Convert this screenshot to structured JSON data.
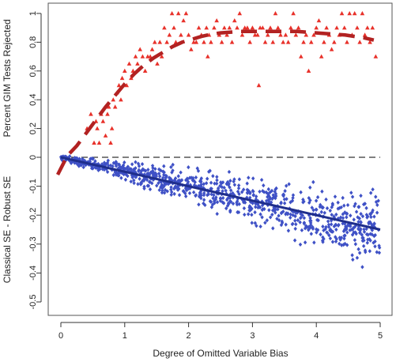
{
  "chart_data": {
    "type": "scatter",
    "xlabel": "Degree of Omitted Variable Bias",
    "ylabel_top": "Percent GIM Tests Rejected",
    "ylabel_bottom": "Classical SE - Robust SE",
    "xlim": [
      -0.35,
      5.2
    ],
    "ylim": [
      -0.52,
      1.05
    ],
    "xticks": [
      0,
      1,
      2,
      3,
      4,
      5
    ],
    "yticks": [
      1,
      0.8,
      0.6,
      0.4,
      0.2,
      0,
      -0.1,
      -0.2,
      -0.3,
      -0.4,
      -0.5
    ],
    "ytick_labels": [
      "1",
      "0.8",
      "0.6",
      "0.4",
      "0.2",
      "0",
      "-0.1",
      "-0.2",
      "-0.3",
      "-0.4",
      "-0.5"
    ],
    "grid": false,
    "reference_line": {
      "y": 0,
      "style": "dashed",
      "color": "#000000"
    },
    "series": [
      {
        "kind": "points",
        "marker": "triangle",
        "color": "#e8312a",
        "points": [
          [
            0.41,
            0.2
          ],
          [
            0.47,
            0.3
          ],
          [
            0.52,
            0.1
          ],
          [
            0.55,
            0.25
          ],
          [
            0.57,
            0.2
          ],
          [
            0.6,
            0.1
          ],
          [
            0.63,
            0.3
          ],
          [
            0.66,
            0.25
          ],
          [
            0.7,
            0.15
          ],
          [
            0.73,
            0.3
          ],
          [
            0.75,
            0.35
          ],
          [
            0.78,
            0.1
          ],
          [
            0.8,
            0.2
          ],
          [
            0.82,
            0.4
          ],
          [
            0.85,
            0.35
          ],
          [
            0.88,
            0.45
          ],
          [
            0.91,
            0.5
          ],
          [
            0.94,
            0.4
          ],
          [
            0.96,
            0.55
          ],
          [
            1.0,
            0.6
          ],
          [
            1.03,
            0.5
          ],
          [
            1.07,
            0.65
          ],
          [
            1.1,
            0.55
          ],
          [
            1.13,
            0.6
          ],
          [
            1.17,
            0.7
          ],
          [
            1.2,
            0.65
          ],
          [
            1.24,
            0.75
          ],
          [
            1.28,
            0.7
          ],
          [
            1.32,
            0.6
          ],
          [
            1.36,
            0.7
          ],
          [
            1.4,
            0.7
          ],
          [
            1.43,
            0.75
          ],
          [
            1.47,
            0.8
          ],
          [
            1.51,
            0.65
          ],
          [
            1.55,
            0.8
          ],
          [
            1.58,
            0.7
          ],
          [
            1.62,
            0.9
          ],
          [
            1.66,
            0.8
          ],
          [
            1.7,
            0.85
          ],
          [
            1.74,
            1.0
          ],
          [
            1.77,
            0.9
          ],
          [
            1.8,
            0.8
          ],
          [
            1.84,
            1.0
          ],
          [
            1.88,
            0.85
          ],
          [
            1.92,
            0.95
          ],
          [
            1.96,
            1.0
          ],
          [
            2.0,
            0.85
          ],
          [
            2.04,
            0.75
          ],
          [
            2.08,
            0.8
          ],
          [
            2.12,
            0.8
          ],
          [
            2.16,
            0.9
          ],
          [
            2.2,
            0.85
          ],
          [
            2.24,
            0.8
          ],
          [
            2.28,
            0.9
          ],
          [
            2.32,
            0.85
          ],
          [
            2.35,
            0.8
          ],
          [
            2.4,
            0.9
          ],
          [
            2.44,
            0.95
          ],
          [
            2.48,
            0.85
          ],
          [
            2.52,
            0.8
          ],
          [
            2.56,
            0.9
          ],
          [
            2.6,
            0.85
          ],
          [
            2.64,
            0.9
          ],
          [
            2.68,
            0.8
          ],
          [
            2.72,
            0.95
          ],
          [
            2.76,
            0.9
          ],
          [
            2.8,
            1.0
          ],
          [
            2.84,
            0.85
          ],
          [
            2.88,
            0.9
          ],
          [
            2.92,
            0.9
          ],
          [
            2.96,
            0.8
          ],
          [
            3.0,
            0.9
          ],
          [
            3.04,
            0.85
          ],
          [
            3.08,
            0.85
          ],
          [
            3.12,
            0.9
          ],
          [
            3.16,
            0.9
          ],
          [
            3.2,
            0.8
          ],
          [
            3.24,
            0.85
          ],
          [
            3.28,
            0.9
          ],
          [
            3.32,
            0.8
          ],
          [
            3.36,
            1.0
          ],
          [
            3.4,
            0.9
          ],
          [
            3.44,
            0.85
          ],
          [
            3.48,
            0.8
          ],
          [
            3.52,
            0.85
          ],
          [
            3.56,
            0.8
          ],
          [
            3.6,
            0.9
          ],
          [
            3.64,
            1.0
          ],
          [
            3.68,
            0.85
          ],
          [
            3.72,
            0.9
          ],
          [
            3.76,
            0.7
          ],
          [
            3.8,
            0.8
          ],
          [
            3.84,
            0.85
          ],
          [
            3.88,
            0.6
          ],
          [
            3.92,
            0.8
          ],
          [
            3.96,
            0.85
          ],
          [
            4.0,
            0.9
          ],
          [
            4.04,
            0.95
          ],
          [
            4.08,
            0.7
          ],
          [
            4.12,
            0.8
          ],
          [
            4.16,
            0.9
          ],
          [
            4.2,
            0.85
          ],
          [
            4.24,
            0.75
          ],
          [
            4.28,
            0.8
          ],
          [
            4.32,
            0.9
          ],
          [
            4.36,
            0.85
          ],
          [
            4.4,
            1.0
          ],
          [
            4.44,
            0.9
          ],
          [
            4.48,
            0.8
          ],
          [
            4.52,
            1.0
          ],
          [
            4.56,
            0.85
          ],
          [
            4.6,
            1.0
          ],
          [
            4.64,
            0.9
          ],
          [
            4.68,
            0.8
          ],
          [
            4.72,
            1.0
          ],
          [
            4.76,
            0.85
          ],
          [
            4.8,
            0.9
          ],
          [
            4.84,
            0.8
          ],
          [
            4.88,
            0.9
          ],
          [
            4.93,
            0.7
          ],
          [
            3.1,
            0.5
          ],
          [
            2.3,
            0.7
          ]
        ]
      },
      {
        "kind": "line",
        "style": "dashed",
        "color": "#b22222",
        "x": [
          -0.05,
          0.1,
          0.25,
          0.4,
          0.55,
          0.7,
          0.85,
          1.0,
          1.15,
          1.3,
          1.45,
          1.6,
          1.75,
          1.9,
          2.05,
          2.2,
          2.35,
          2.5,
          2.65,
          2.8,
          2.95,
          3.1,
          3.25,
          3.4,
          3.55,
          3.7,
          3.85,
          4.0,
          4.15,
          4.3,
          4.45,
          4.6,
          4.75,
          4.9
        ],
        "y": [
          -0.06,
          0.01,
          0.08,
          0.17,
          0.26,
          0.35,
          0.43,
          0.51,
          0.58,
          0.64,
          0.69,
          0.73,
          0.77,
          0.8,
          0.82,
          0.84,
          0.855,
          0.865,
          0.87,
          0.875,
          0.875,
          0.875,
          0.875,
          0.875,
          0.875,
          0.875,
          0.87,
          0.865,
          0.86,
          0.855,
          0.85,
          0.84,
          0.83,
          0.815
        ]
      },
      {
        "kind": "line",
        "style": "solid",
        "color": "#1f2e8c",
        "x": [
          0,
          5
        ],
        "y": [
          0.0,
          -0.25
        ]
      }
    ],
    "scatter_blue": {
      "marker": "diamond",
      "color": "#3f51c6",
      "trend_slope": -0.05,
      "spread_growth": 0.011,
      "n": 900,
      "x_range": [
        0,
        5
      ]
    }
  }
}
